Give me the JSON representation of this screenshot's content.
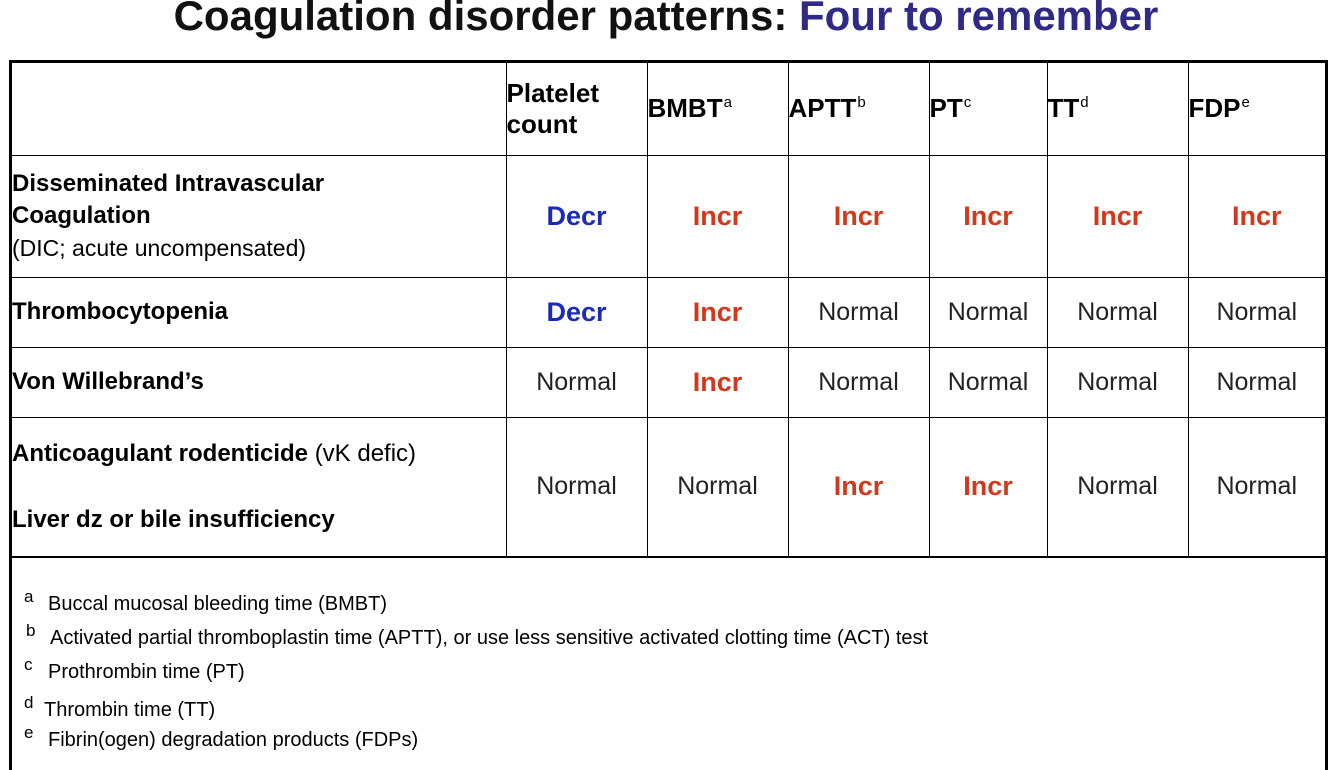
{
  "title": {
    "main": "Coagulation disorder patterns:",
    "accent": "Four to remember"
  },
  "columns": [
    {
      "label_line1": "Platelet",
      "label_line2": "count",
      "sup": ""
    },
    {
      "label_line1": "",
      "label_line2": "BMBT",
      "sup": "a"
    },
    {
      "label_line1": "",
      "label_line2": "APTT",
      "sup": "b"
    },
    {
      "label_line1": "",
      "label_line2": "PT",
      "sup": "c"
    },
    {
      "label_line1": "",
      "label_line2": "TT",
      "sup": "d"
    },
    {
      "label_line1": "",
      "label_line2": "FDP",
      "sup": "e"
    }
  ],
  "rows": [
    {
      "label_bold": "Disseminated Intravascular Coagulation",
      "label_sub": "(DIC; acute uncompensated)",
      "values": [
        "Decr",
        "Incr",
        "Incr",
        "Incr",
        "Incr",
        "Incr"
      ]
    },
    {
      "label_bold": "Thrombocytopenia",
      "values": [
        "Decr",
        "Incr",
        "Normal",
        "Normal",
        "Normal",
        "Normal"
      ]
    },
    {
      "label_bold": "Von Willebrand’s",
      "values": [
        "Normal",
        "Incr",
        "Normal",
        "Normal",
        "Normal",
        "Normal"
      ]
    },
    {
      "label_bold": "Anticoagulant rodenticide",
      "label_suffix": "(vK defic)",
      "label_bold2": "Liver dz or bile insufficiency",
      "values": [
        "Normal",
        "Normal",
        "Incr",
        "Incr",
        "Normal",
        "Normal"
      ]
    }
  ],
  "footnotes": [
    {
      "mark": "a",
      "text": "Buccal mucosal bleeding time (BMBT)"
    },
    {
      "mark": "b",
      "text": "Activated partial thromboplastin time  (APTT), or use less sensitive activated clotting time (ACT) test"
    },
    {
      "mark": "c",
      "text": "Prothrombin time (PT)"
    },
    {
      "mark": "d",
      "text": "Thrombin time (TT)"
    },
    {
      "mark": "e",
      "text": "Fibrin(ogen) degradation products (FDPs)"
    }
  ],
  "colors": {
    "title_accent": "#2e2a86",
    "decr": "#1a2bb5",
    "incr": "#d1381c"
  }
}
